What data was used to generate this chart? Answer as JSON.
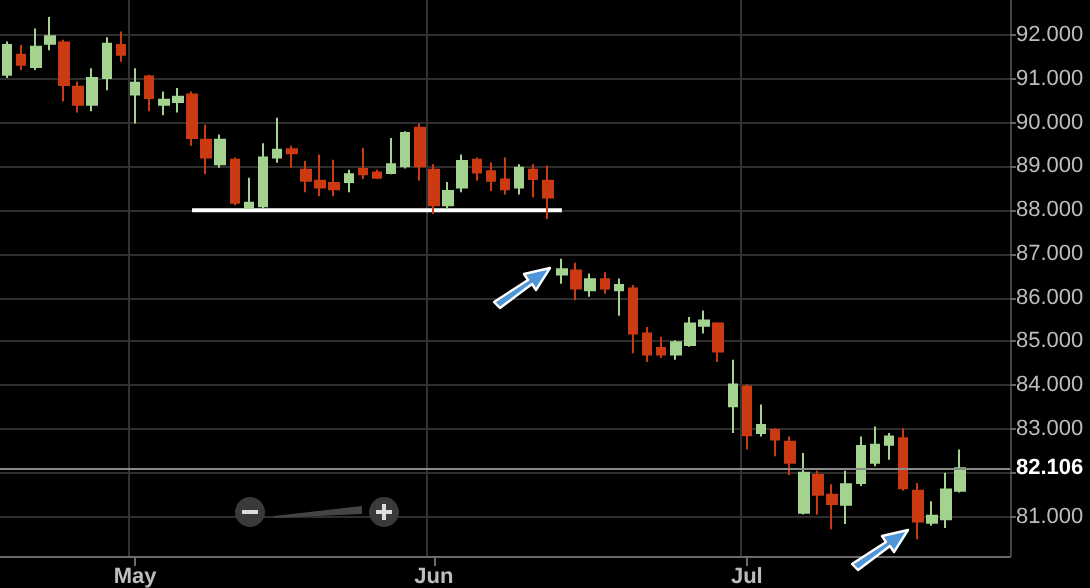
{
  "chart_data": {
    "type": "candlestick",
    "categories": [
      null,
      null,
      null,
      null,
      null,
      null,
      null,
      null,
      null,
      "May",
      null,
      null,
      null,
      null,
      null,
      null,
      null,
      null,
      null,
      null,
      null,
      null,
      null,
      null,
      null,
      null,
      null,
      null,
      null,
      null,
      "Jun",
      null,
      null,
      null,
      null,
      null,
      null,
      null,
      null,
      null,
      null,
      null,
      null,
      null,
      null,
      null,
      null,
      null,
      null,
      null,
      null,
      null,
      "Jul",
      null,
      null,
      null,
      null,
      null,
      null,
      null,
      null,
      null,
      null,
      null,
      null,
      null,
      null,
      null
    ],
    "ohlc": [
      [
        91.09,
        91.85,
        91.02,
        91.77
      ],
      [
        91.55,
        91.77,
        91.2,
        91.32
      ],
      [
        91.27,
        92.15,
        91.2,
        91.73
      ],
      [
        91.8,
        92.41,
        91.65,
        91.97
      ],
      [
        91.83,
        91.89,
        90.48,
        90.86
      ],
      [
        90.82,
        90.94,
        90.23,
        90.41
      ],
      [
        90.41,
        91.24,
        90.26,
        91.02
      ],
      [
        91.02,
        91.95,
        90.74,
        91.8
      ],
      [
        91.77,
        92.08,
        91.39,
        91.55
      ],
      [
        90.64,
        91.24,
        89.98,
        90.91
      ],
      [
        91.05,
        91.09,
        90.26,
        90.56
      ],
      [
        90.41,
        90.71,
        90.17,
        90.52
      ],
      [
        90.47,
        90.79,
        90.23,
        90.59
      ],
      [
        90.64,
        90.71,
        89.47,
        89.65
      ],
      [
        89.61,
        89.95,
        88.82,
        89.2
      ],
      [
        89.05,
        89.73,
        88.97,
        89.61
      ],
      [
        89.15,
        89.2,
        88.11,
        88.17
      ],
      [
        88.05,
        88.74,
        88.05,
        88.17
      ],
      [
        88.09,
        89.53,
        88.05,
        89.2
      ],
      [
        89.2,
        90.11,
        89.08,
        89.38
      ],
      [
        89.39,
        89.47,
        88.97,
        89.3
      ],
      [
        88.92,
        89.12,
        88.41,
        88.67
      ],
      [
        88.67,
        89.27,
        88.32,
        88.52
      ],
      [
        88.62,
        89.15,
        88.32,
        88.48
      ],
      [
        88.64,
        88.92,
        88.41,
        88.82
      ],
      [
        88.94,
        89.42,
        88.71,
        88.82
      ],
      [
        88.86,
        88.92,
        88.71,
        88.74
      ],
      [
        88.85,
        89.65,
        88.82,
        89.05
      ],
      [
        89,
        89.8,
        88.95,
        89.76
      ],
      [
        89.88,
        89.98,
        88.67,
        89
      ],
      [
        88.92,
        89.05,
        87.91,
        88.11
      ],
      [
        88.11,
        88.64,
        88.02,
        88.44
      ],
      [
        88.52,
        89.27,
        88.41,
        89.12
      ],
      [
        89.15,
        89.2,
        88.67,
        88.86
      ],
      [
        88.89,
        89.09,
        88.44,
        88.67
      ],
      [
        88.7,
        89.2,
        88.36,
        88.48
      ],
      [
        88.52,
        89.05,
        88.36,
        88.97
      ],
      [
        88.92,
        89.05,
        88.29,
        88.71
      ],
      [
        88.67,
        89.02,
        87.8,
        88.29
      ],
      [
        86.53,
        86.89,
        86.32,
        86.65
      ],
      [
        86.62,
        86.8,
        85.94,
        86.21
      ],
      [
        86.17,
        86.55,
        86.02,
        86.42
      ],
      [
        86.42,
        86.58,
        86.09,
        86.21
      ],
      [
        86.17,
        86.44,
        85.59,
        86.29
      ],
      [
        86.21,
        86.29,
        84.73,
        85.18
      ],
      [
        85.18,
        85.33,
        84.53,
        84.7
      ],
      [
        84.85,
        85.11,
        84.62,
        84.7
      ],
      [
        84.7,
        85.03,
        84.58,
        84.98
      ],
      [
        84.92,
        85.56,
        84.88,
        85.41
      ],
      [
        85.36,
        85.71,
        85.18,
        85.48
      ],
      [
        85.41,
        85.44,
        84.53,
        84.77
      ],
      [
        83.52,
        84.58,
        82.91,
        84.02
      ],
      [
        83.97,
        84.02,
        82.53,
        82.86
      ],
      [
        82.91,
        83.56,
        82.83,
        83.09
      ],
      [
        82.98,
        83.02,
        82.38,
        82.76
      ],
      [
        82.71,
        82.83,
        81.95,
        82.23
      ],
      [
        81.09,
        82.45,
        81.05,
        82
      ],
      [
        81.95,
        82.05,
        81.05,
        81.5
      ],
      [
        81.5,
        81.74,
        80.71,
        81.29
      ],
      [
        81.27,
        82.05,
        80.83,
        81.74
      ],
      [
        81.77,
        82.83,
        81.7,
        82.61
      ],
      [
        82.23,
        83.06,
        82.15,
        82.64
      ],
      [
        82.64,
        82.91,
        82.3,
        82.83
      ],
      [
        82.79,
        83.02,
        81.59,
        81.65
      ],
      [
        81.59,
        81.77,
        80.48,
        80.89
      ],
      [
        80.86,
        81.35,
        80.79,
        81.02
      ],
      [
        80.94,
        82,
        80.74,
        81.62
      ],
      [
        81.59,
        82.53,
        81.55,
        82.106
      ]
    ],
    "colors": [
      "#a3d38f",
      "#cc3a12",
      "#a3d38f",
      "#a3d38f",
      "#cc3a12",
      "#cc3a12",
      "#a3d38f",
      "#a3d38f",
      "#cc3a12",
      "#a3d38f",
      "#cc3a12",
      "#a3d38f",
      "#a3d38f",
      "#cc3a12",
      "#cc3a12",
      "#a3d38f",
      "#cc3a12",
      "#a3d38f",
      "#a3d38f",
      "#a3d38f",
      "#cc3a12",
      "#cc3a12",
      "#cc3a12",
      "#cc3a12",
      "#a3d38f",
      "#cc3a12",
      "#cc3a12",
      "#a3d38f",
      "#a3d38f",
      "#cc3a12",
      "#cc3a12",
      "#a3d38f",
      "#a3d38f",
      "#cc3a12",
      "#cc3a12",
      "#cc3a12",
      "#a3d38f",
      "#cc3a12",
      "#cc3a12",
      "#a3d38f",
      "#cc3a12",
      "#a3d38f",
      "#cc3a12",
      "#a3d38f",
      "#cc3a12",
      "#cc3a12",
      "#cc3a12",
      "#a3d38f",
      "#a3d38f",
      "#a3d38f",
      "#cc3a12",
      "#a3d38f",
      "#cc3a12",
      "#a3d38f",
      "#cc3a12",
      "#cc3a12",
      "#a3d38f",
      "#cc3a12",
      "#cc3a12",
      "#a3d38f",
      "#a3d38f",
      "#a3d38f",
      "#a3d38f",
      "#cc3a12",
      "#cc3a12",
      "#a3d38f",
      "#a3d38f",
      "#a3d38f"
    ],
    "series": [
      {
        "type": "line",
        "color": "#ffffff",
        "values": [
          null,
          null,
          null,
          null,
          null,
          null,
          null,
          null,
          null,
          null,
          null,
          null,
          null,
          88,
          88,
          88,
          88,
          88,
          88,
          88,
          88,
          88,
          88,
          88,
          88,
          88,
          88,
          88,
          88,
          88,
          88,
          88,
          88,
          88,
          88,
          88,
          88,
          88,
          88,
          88,
          null,
          null,
          null,
          null,
          null,
          null,
          null,
          null,
          null,
          null,
          null,
          null,
          null,
          null,
          null,
          null,
          null,
          null,
          null,
          null,
          null,
          null,
          null,
          null,
          null,
          null,
          null,
          null
        ]
      }
    ],
    "ylim": [
      80.1,
      92.8
    ],
    "yticks": [
      {
        "value": 81,
        "label": "81.000"
      },
      {
        "value": 82,
        "label": null
      },
      {
        "value": 83,
        "label": "83.000"
      },
      {
        "value": 84,
        "label": "84.000"
      },
      {
        "value": 85,
        "label": "85.000"
      },
      {
        "value": 86,
        "label": "86.000"
      },
      {
        "value": 87,
        "label": "87.000"
      },
      {
        "value": 88,
        "label": "88.000"
      },
      {
        "value": 89,
        "label": "89.000"
      },
      {
        "value": 90,
        "label": "90.000"
      },
      {
        "value": 91,
        "label": "91.000"
      },
      {
        "value": 92,
        "label": "92.000"
      }
    ],
    "ref_lines": [
      {
        "axis": "y",
        "value": 82.106,
        "label": "82.106"
      }
    ],
    "grid": true
  }
}
